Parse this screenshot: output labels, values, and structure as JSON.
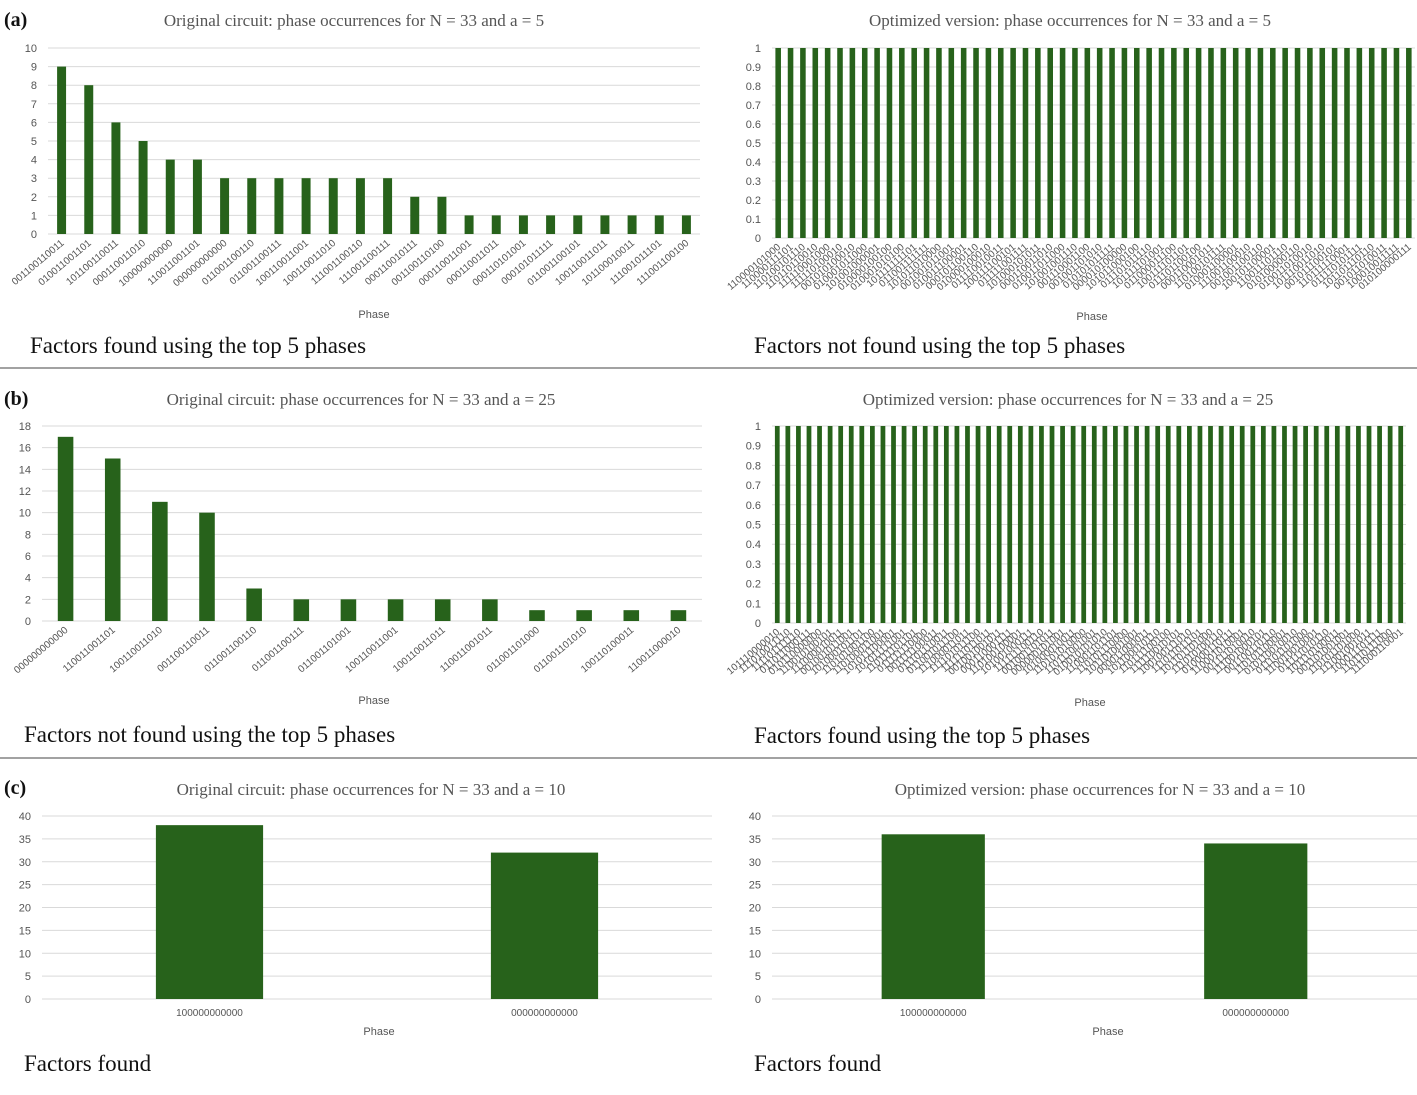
{
  "colors": {
    "bar": "#27621b",
    "grid": "#d9d9d9",
    "separator": "#444444"
  },
  "panels": [
    {
      "label": "(a)",
      "charts": [
        {
          "caption": "Factors found using the top 5 phases",
          "chart": {
            "type": "bar",
            "title": "Original  circuit: phase occurrences for N = 33 and a = 5",
            "xlabel": "Phase",
            "ylabel": "",
            "ylim": [
              0,
              10
            ],
            "yticks": [
              "0",
              "1",
              "2",
              "3",
              "4",
              "5",
              "6",
              "7",
              "8",
              "9",
              "10"
            ],
            "categories": [
              "001100110011",
              "010011001101",
              "101100110011",
              "000110011010",
              "100000000000",
              "110011001101",
              "000000000000",
              "011001100110",
              "011001100111",
              "100110011001",
              "100110011010",
              "111001100110",
              "111001100111",
              "000110010111",
              "001100110100",
              "000110011001",
              "000110011011",
              "000110101001",
              "000101011111",
              "011001100101",
              "100110011011",
              "101100010011",
              "111001011101",
              "111001100100"
            ],
            "values": [
              9,
              8,
              6,
              5,
              4,
              4,
              3,
              3,
              3,
              3,
              3,
              3,
              3,
              2,
              2,
              1,
              1,
              1,
              1,
              1,
              1,
              1,
              1,
              1
            ]
          }
        },
        {
          "caption": "Factors not found using the top 5 phases",
          "chart": {
            "type": "bar",
            "title": "Optimized version: phase occurrences for N = 33 and a = 5",
            "xlabel": "Phase",
            "ylabel": "",
            "ylim": [
              0,
              1
            ],
            "yticks": [
              "0",
              "0.1",
              "0.2",
              "0.3",
              "0.4",
              "0.5",
              "0.6",
              "0.7",
              "0.8",
              "0.9",
              "1"
            ],
            "categories": [
              "110000101000",
              "110000111101",
              "110100101110",
              "110110110010",
              "111110001000",
              "111110100010",
              "001010100010",
              "010001011000",
              "101001000001",
              "010000100100",
              "010001010100",
              "101111111101",
              "011001111111",
              "101011010000",
              "001001011001",
              "010011100001",
              "000101100110",
              "010000100010",
              "011110010011",
              "100111100101",
              "011111001111",
              "101000101011",
              "000110011010",
              "010011011000",
              "101001001110",
              "001110001100",
              "001001101010",
              "010101011111",
              "000010100000",
              "101011000100",
              "011101011110",
              "101111101001",
              "011000011100",
              "100111101101",
              "011101100100",
              "000110001011",
              "110100101111",
              "010001100001",
              "111001100010",
              "001001100110",
              "100101100001",
              "110011101110",
              "010100000110",
              "010011010010",
              "101110011010",
              "001011100101",
              "110111110001",
              "011110101111",
              "101101110110",
              "001011010011",
              "100010011111",
              "010100000111"
            ],
            "values": [
              1,
              1,
              1,
              1,
              1,
              1,
              1,
              1,
              1,
              1,
              1,
              1,
              1,
              1,
              1,
              1,
              1,
              1,
              1,
              1,
              1,
              1,
              1,
              1,
              1,
              1,
              1,
              1,
              1,
              1,
              1,
              1,
              1,
              1,
              1,
              1,
              1,
              1,
              1,
              1,
              1,
              1,
              1,
              1,
              1,
              1,
              1,
              1,
              1,
              1,
              1,
              1
            ]
          }
        }
      ]
    },
    {
      "label": "(b)",
      "charts": [
        {
          "caption": "Factors not found using the top 5 phases",
          "chart": {
            "type": "bar",
            "title": "Original  circuit: phase occurrences for N = 33 and a = 25",
            "xlabel": "Phase",
            "ylabel": "",
            "ylim": [
              0,
              18
            ],
            "yticks": [
              "0",
              "2",
              "4",
              "6",
              "8",
              "10",
              "12",
              "14",
              "16",
              "18"
            ],
            "categories": [
              "000000000000",
              "110011001101",
              "100110011010",
              "001100110011",
              "011001100110",
              "011001100111",
              "011001101001",
              "100110011001",
              "100110011011",
              "110011001011",
              "011001101000",
              "011001101010",
              "100110100011",
              "110011000010"
            ],
            "values": [
              17,
              15,
              11,
              10,
              3,
              2,
              2,
              2,
              2,
              2,
              1,
              1,
              1,
              1
            ]
          }
        },
        {
          "caption": "Factors found using the top 5 phases",
          "chart": {
            "type": "bar",
            "title": "Optimized version: phase occurrences for N = 33 and a = 25",
            "xlabel": "Phase",
            "ylabel": "",
            "ylim": [
              0,
              1
            ],
            "yticks": [
              "0",
              "0.1",
              "0.2",
              "0.3",
              "0.4",
              "0.5",
              "0.6",
              "0.7",
              "0.8",
              "0.9",
              "1"
            ],
            "categories": [
              "101110000010",
              "111010011110",
              "111101111110",
              "011011000111",
              "010110000000",
              "110010100101",
              "111000010011",
              "001001011001",
              "101000101101",
              "110101001100",
              "110100011001",
              "101011100001",
              "101011111001",
              "110111101101",
              "011111110000",
              "001111100011",
              "011101110011",
              "011001011100",
              "111000011011",
              "111101011100",
              "111111011011",
              "001001001011",
              "000110001111",
              "110100100001",
              "101001000111",
              "111111100110",
              "001001101011",
              "000000101001",
              "101000010011",
              "110101010000",
              "110111001001",
              "010010101010",
              "110001101101",
              "110101110000",
              "101101001001",
              "000011000011",
              "101100010110",
              "110111100100",
              "111110010101",
              "100100111010",
              "111011011101",
              "101101101000",
              "111010100110",
              "010000110111",
              "110001010001",
              "001111010010",
              "111001000101",
              "001100110110",
              "110101100001",
              "010110010010",
              "011101101000",
              "110010010001",
              "011111010110",
              "101110100011",
              "001101001001",
              "110101101000",
              "111001001011",
              "100011101111",
              "110110111000",
              "111000110001"
            ],
            "values": [
              1,
              1,
              1,
              1,
              1,
              1,
              1,
              1,
              1,
              1,
              1,
              1,
              1,
              1,
              1,
              1,
              1,
              1,
              1,
              1,
              1,
              1,
              1,
              1,
              1,
              1,
              1,
              1,
              1,
              1,
              1,
              1,
              1,
              1,
              1,
              1,
              1,
              1,
              1,
              1,
              1,
              1,
              1,
              1,
              1,
              1,
              1,
              1,
              1,
              1,
              1,
              1,
              1,
              1,
              1,
              1,
              1,
              1,
              1,
              1
            ]
          }
        }
      ]
    },
    {
      "label": "(c)",
      "charts": [
        {
          "caption": "Factors found",
          "chart": {
            "type": "bar",
            "title": "Original  circuit: phase occurrences for N = 33 and a = 10",
            "xlabel": "Phase",
            "ylabel": "",
            "ylim": [
              0,
              40
            ],
            "yticks": [
              "0",
              "5",
              "10",
              "15",
              "20",
              "25",
              "30",
              "35",
              "40"
            ],
            "categories": [
              "100000000000",
              "000000000000"
            ],
            "values": [
              38,
              32
            ]
          }
        },
        {
          "caption": "Factors found",
          "chart": {
            "type": "bar",
            "title": "Optimized version: phase occurrences for N = 33 and a = 10",
            "xlabel": "Phase",
            "ylabel": "",
            "ylim": [
              0,
              40
            ],
            "yticks": [
              "0",
              "5",
              "10",
              "15",
              "20",
              "25",
              "30",
              "35",
              "40"
            ],
            "categories": [
              "100000000000",
              "000000000000"
            ],
            "values": [
              36,
              34
            ]
          }
        }
      ]
    }
  ],
  "chart_data": [
    {
      "type": "bar",
      "title": "Original  circuit: phase occurrences for N = 33 and a = 5",
      "xlabel": "Phase",
      "ylabel": "",
      "ylim": [
        0,
        10
      ],
      "categories": [
        "001100110011",
        "010011001101",
        "101100110011",
        "000110011010",
        "100000000000",
        "110011001101",
        "000000000000",
        "011001100110",
        "011001100111",
        "100110011001",
        "100110011010",
        "111001100110",
        "111001100111",
        "000110010111",
        "001100110100",
        "000110011001",
        "000110011011",
        "000110101001",
        "000101011111",
        "011001100101",
        "100110011011",
        "101100010011",
        "111001011101",
        "111001100100"
      ],
      "values": [
        9,
        8,
        6,
        5,
        4,
        4,
        3,
        3,
        3,
        3,
        3,
        3,
        3,
        2,
        2,
        1,
        1,
        1,
        1,
        1,
        1,
        1,
        1,
        1
      ]
    },
    {
      "type": "bar",
      "title": "Optimized version: phase occurrences for N = 33 and a = 5",
      "xlabel": "Phase",
      "ylabel": "",
      "ylim": [
        0,
        1
      ],
      "categories_note": "52 distinct phases, each occurring once",
      "values_all": 1
    },
    {
      "type": "bar",
      "title": "Original  circuit: phase occurrences for N = 33 and a = 25",
      "xlabel": "Phase",
      "ylabel": "",
      "ylim": [
        0,
        18
      ],
      "categories": [
        "000000000000",
        "110011001101",
        "100110011010",
        "001100110011",
        "011001100110",
        "011001100111",
        "011001101001",
        "100110011001",
        "100110011011",
        "110011001011",
        "011001101000",
        "011001101010",
        "100110100011",
        "110011000010"
      ],
      "values": [
        17,
        15,
        11,
        10,
        3,
        2,
        2,
        2,
        2,
        2,
        1,
        1,
        1,
        1
      ]
    },
    {
      "type": "bar",
      "title": "Optimized version: phase occurrences for N = 33 and a = 25",
      "xlabel": "Phase",
      "ylabel": "",
      "ylim": [
        0,
        1
      ],
      "categories_note": "60 distinct phases, each occurring once",
      "values_all": 1
    },
    {
      "type": "bar",
      "title": "Original  circuit: phase occurrences for N = 33 and a = 10",
      "xlabel": "Phase",
      "ylabel": "",
      "ylim": [
        0,
        40
      ],
      "categories": [
        "100000000000",
        "000000000000"
      ],
      "values": [
        38,
        32
      ]
    },
    {
      "type": "bar",
      "title": "Optimized version: phase occurrences for N = 33 and a = 10",
      "xlabel": "Phase",
      "ylabel": "",
      "ylim": [
        0,
        40
      ],
      "categories": [
        "100000000000",
        "000000000000"
      ],
      "values": [
        36,
        34
      ]
    }
  ]
}
